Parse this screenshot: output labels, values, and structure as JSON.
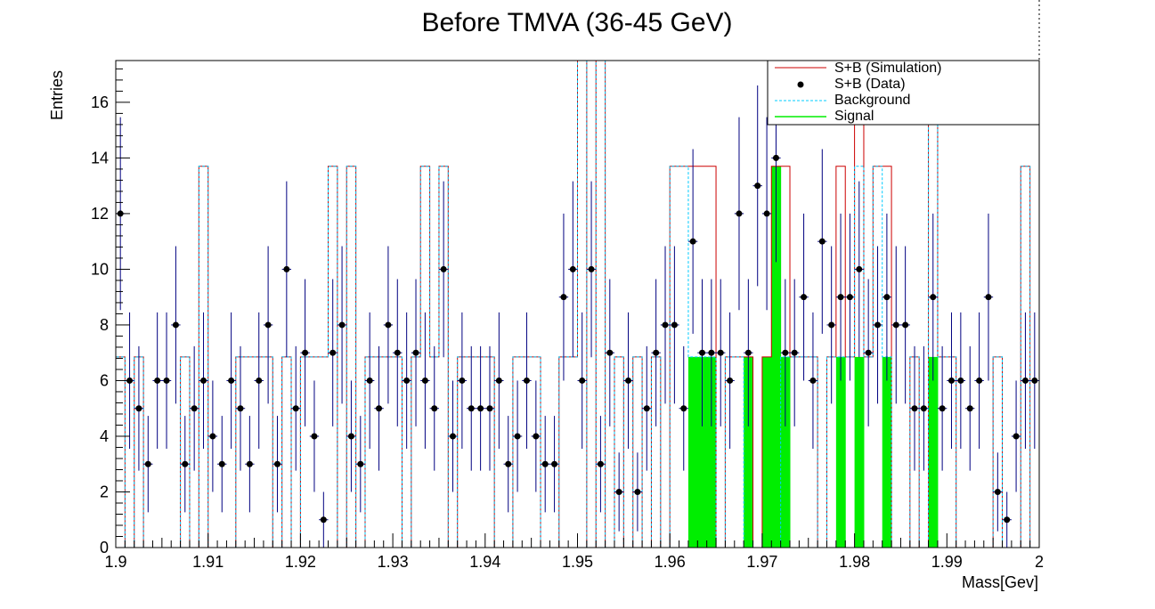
{
  "chart_data": {
    "type": "histogram",
    "title": "Before TMVA (36-45 GeV)",
    "xlabel": "Mass[Gev]",
    "ylabel": "Entries",
    "xlim": [
      1.9,
      2.0
    ],
    "ylim": [
      0,
      17.5
    ],
    "xticks": [
      1.9,
      1.91,
      1.92,
      1.93,
      1.94,
      1.95,
      1.96,
      1.97,
      1.98,
      1.99,
      2.0
    ],
    "xtick_labels": [
      "1.9",
      "1.91",
      "1.92",
      "1.93",
      "1.94",
      "1.95",
      "1.96",
      "1.97",
      "1.98",
      "1.99",
      "2"
    ],
    "yticks": [
      0,
      2,
      4,
      6,
      8,
      10,
      12,
      14,
      16
    ],
    "ytick_labels": [
      "0",
      "2",
      "4",
      "6",
      "8",
      "10",
      "12",
      "14",
      "16"
    ],
    "grid": false,
    "legend_position": "top-right",
    "bins": 100,
    "colors": {
      "simulation": "#cc0000",
      "data": "#000000",
      "data_error": "#000080",
      "background": "#00ccff",
      "signal": "#00ee00"
    },
    "legend": [
      {
        "label": "S+B (Simulation)",
        "style": "line",
        "color": "#cc0000"
      },
      {
        "label": "S+B (Data)",
        "style": "marker",
        "color": "#000000"
      },
      {
        "label": "Background",
        "style": "dashed",
        "color": "#00ccff"
      },
      {
        "label": "Signal",
        "style": "line",
        "color": "#00ee00"
      }
    ],
    "data_points": [
      12,
      6,
      5,
      3,
      6,
      6,
      8,
      3,
      5,
      6,
      4,
      3,
      6,
      5,
      3,
      6,
      8,
      3,
      10,
      5,
      7,
      4,
      1,
      7,
      8,
      4,
      3,
      6,
      5,
      8,
      7,
      6,
      7,
      6,
      5,
      10,
      4,
      6,
      5,
      5,
      5,
      6,
      3,
      4,
      6,
      4,
      3,
      3,
      9,
      10,
      6,
      10,
      3,
      7,
      2,
      6,
      2,
      5,
      7,
      8,
      8,
      5,
      11,
      7,
      7,
      7,
      6,
      12,
      7,
      13,
      12,
      14,
      7,
      7,
      9,
      6,
      11,
      8,
      9,
      9,
      10,
      7,
      8,
      9,
      8,
      8,
      5,
      5,
      9,
      5,
      6,
      6,
      5,
      6,
      9,
      2,
      1,
      4,
      6,
      6
    ],
    "background_counts": [
      6.85,
      0,
      6.85,
      0,
      0,
      0,
      0,
      6.85,
      0,
      13.7,
      0,
      0,
      0,
      6.85,
      6.85,
      6.85,
      6.85,
      0,
      6.85,
      0,
      6.85,
      6.85,
      6.85,
      13.7,
      0,
      13.7,
      0,
      6.85,
      6.85,
      6.85,
      6.85,
      0,
      6.85,
      13.7,
      6.85,
      13.7,
      0,
      6.85,
      6.85,
      6.85,
      6.85,
      0,
      0,
      6.85,
      6.85,
      6.85,
      0,
      0,
      6.85,
      6.85,
      27.4,
      0,
      27.4,
      0,
      6.85,
      0,
      6.85,
      0,
      6.85,
      0,
      13.7,
      13.7,
      6.85,
      6.85,
      6.85,
      0,
      6.85,
      6.85,
      0,
      0,
      0,
      0,
      6.85,
      6.85,
      6.85,
      6.85,
      0,
      6.85,
      6.85,
      6.85,
      13.7,
      6.85,
      13.7,
      6.85,
      0,
      0,
      6.85,
      0,
      27.4,
      6.85,
      6.85,
      0,
      0,
      0,
      0,
      6.85,
      0,
      0,
      13.7,
      0
    ],
    "signal_counts": [
      0,
      0,
      0,
      0,
      0,
      0,
      0,
      0,
      0,
      0,
      0,
      0,
      0,
      0,
      0,
      0,
      0,
      0,
      0,
      0,
      0,
      0,
      0,
      0,
      0,
      0,
      0,
      0,
      0,
      0,
      0,
      0,
      0,
      0,
      0,
      0,
      0,
      0,
      0,
      0,
      0,
      0,
      0,
      0,
      0,
      0,
      0,
      0,
      0,
      0,
      0,
      0,
      0,
      0,
      0,
      0,
      0,
      0,
      0,
      0,
      0,
      0,
      6.85,
      6.85,
      6.85,
      0,
      0,
      0,
      6.85,
      0,
      6.85,
      13.7,
      6.85,
      0,
      0,
      0,
      0,
      0,
      6.85,
      0,
      6.85,
      0,
      0,
      6.85,
      0,
      0,
      0,
      0,
      6.85,
      0,
      0,
      0,
      0,
      0,
      0,
      0,
      0,
      0,
      0,
      0
    ]
  }
}
